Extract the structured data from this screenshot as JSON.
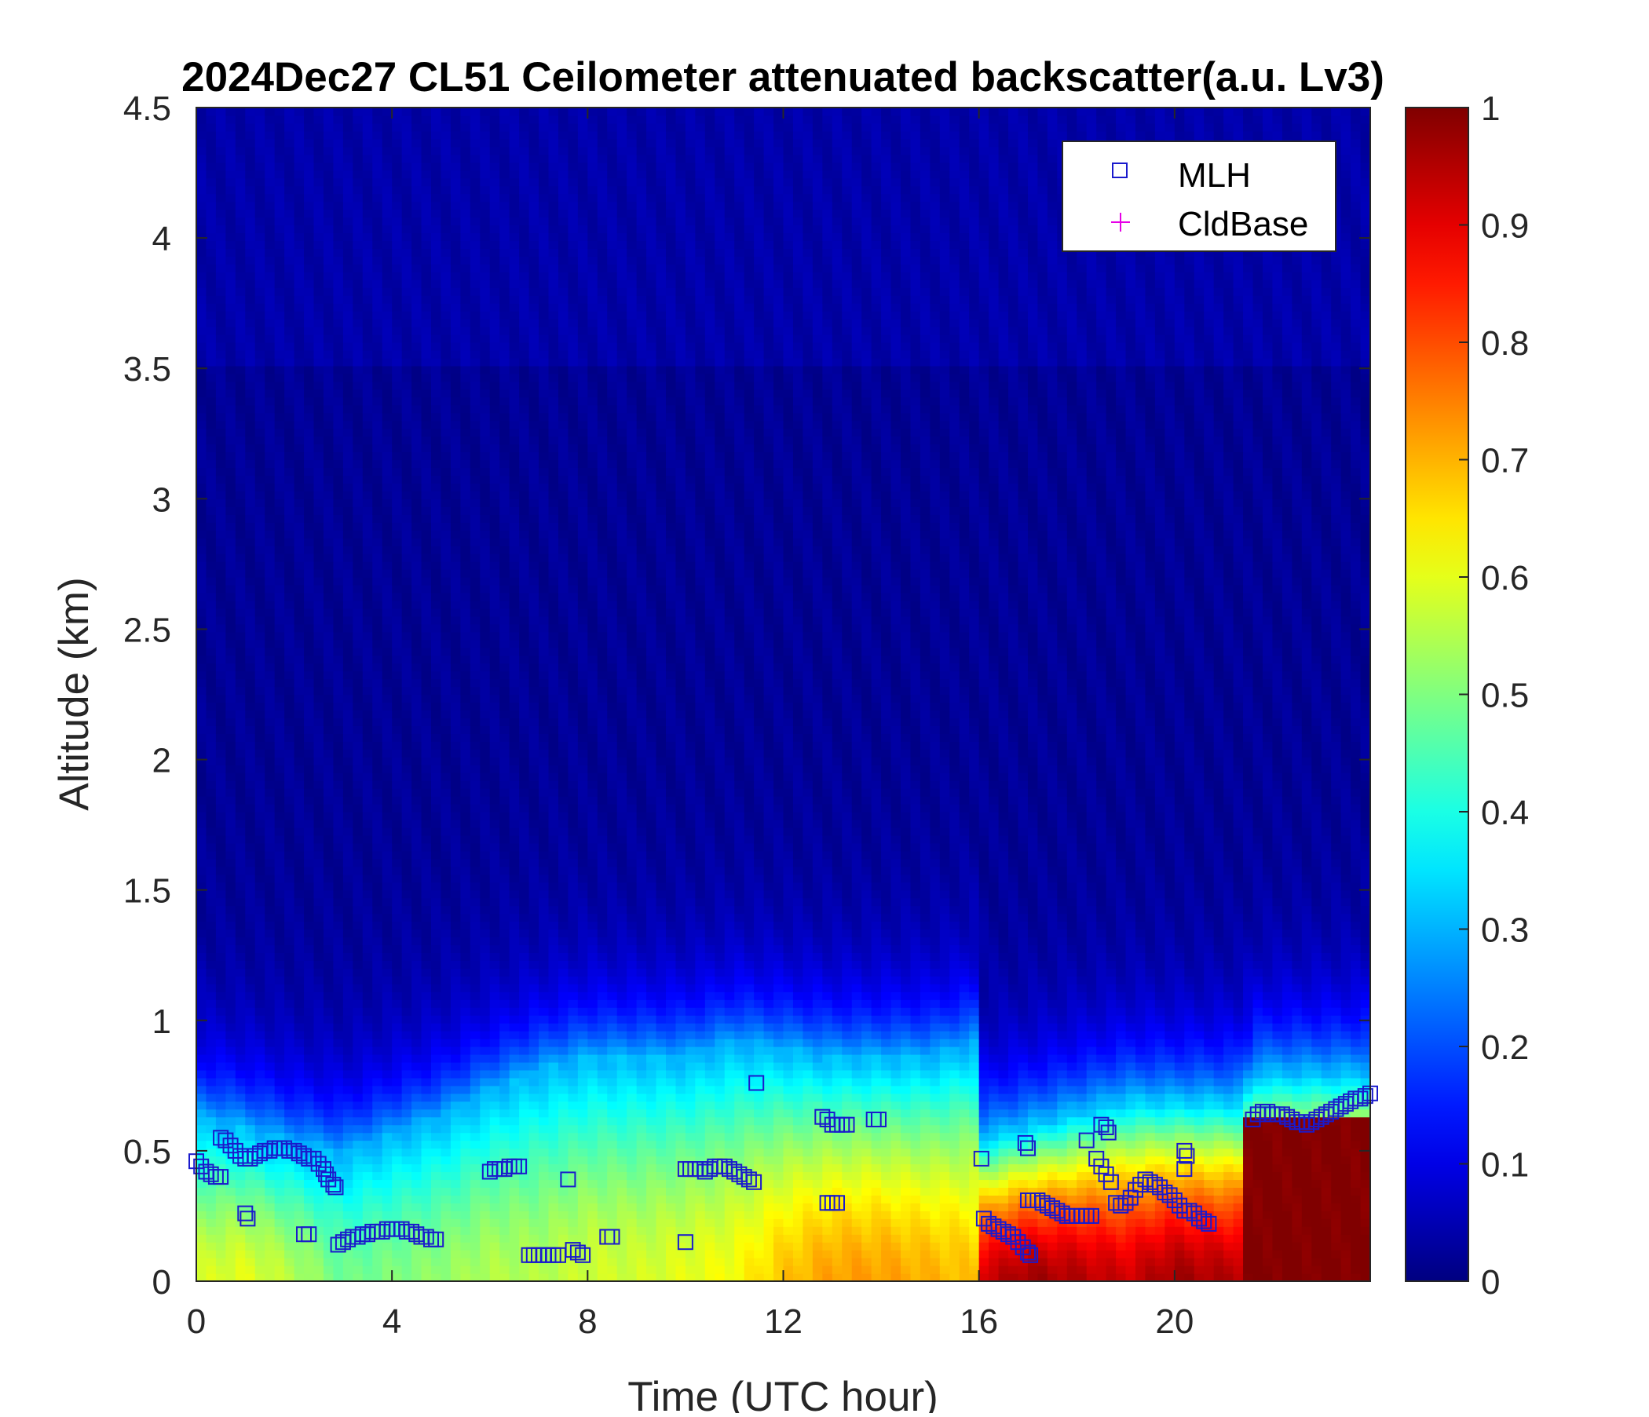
{
  "chart_data": {
    "type": "heatmap",
    "title": "2024Dec27 CL51 Ceilometer attenuated backscatter(a.u. Lv3)",
    "xlabel": "Time (UTC hour)",
    "ylabel": "Altitude (km)",
    "xlim": [
      0,
      24
    ],
    "ylim": [
      0,
      4.5
    ],
    "xticks": [
      0,
      4,
      8,
      12,
      16,
      20
    ],
    "xtick_labels": [
      "0",
      "4",
      "8",
      "12",
      "16",
      "20"
    ],
    "yticks": [
      0,
      0.5,
      1,
      1.5,
      2,
      2.5,
      3,
      3.5,
      4,
      4.5
    ],
    "ytick_labels": [
      "0",
      "0.5",
      "1",
      "1.5",
      "2",
      "2.5",
      "3",
      "3.5",
      "4",
      "4.5"
    ],
    "colorbar": {
      "colormap": "jet",
      "range": [
        0,
        1
      ],
      "ticks": [
        0,
        0.1,
        0.2,
        0.3,
        0.4,
        0.5,
        0.6,
        0.7,
        0.8,
        0.9,
        1
      ],
      "tick_labels": [
        "0",
        "0.1",
        "0.2",
        "0.3",
        "0.4",
        "0.5",
        "0.6",
        "0.7",
        "0.8",
        "0.9",
        "1"
      ]
    },
    "legend": {
      "position": "top-right",
      "entries": [
        {
          "label": "MLH",
          "marker": "square",
          "color": "#1a1acc"
        },
        {
          "label": "CldBase",
          "marker": "plus",
          "color": "#e600e6"
        }
      ]
    },
    "grid": false,
    "background_profile": {
      "description_free": true,
      "time_nodes": [
        0,
        1,
        2,
        3,
        4,
        5,
        6,
        7,
        8,
        9,
        10,
        11,
        12,
        13,
        14,
        15,
        15.99,
        16.01,
        17,
        18,
        19,
        20,
        21,
        21.49,
        21.51,
        22,
        23,
        24
      ],
      "mixed_layer_top_km": [
        0.62,
        0.58,
        0.52,
        0.48,
        0.55,
        0.62,
        0.72,
        0.8,
        0.85,
        0.85,
        0.85,
        0.9,
        0.88,
        0.85,
        0.85,
        0.85,
        0.9,
        0.55,
        0.6,
        0.65,
        0.7,
        0.7,
        0.7,
        0.7,
        0.8,
        0.8,
        0.8,
        0.8
      ],
      "near_surface_value": [
        0.58,
        0.6,
        0.55,
        0.48,
        0.5,
        0.52,
        0.55,
        0.55,
        0.58,
        0.58,
        0.6,
        0.62,
        0.68,
        0.72,
        0.72,
        0.7,
        0.68,
        0.92,
        0.97,
        0.95,
        0.92,
        0.97,
        0.95,
        0.95,
        1.0,
        1.0,
        1.0,
        1.0
      ],
      "saturated_block": {
        "x": [
          21.5,
          24
        ],
        "y": [
          0,
          0.62
        ],
        "value": 1.0
      }
    },
    "mlh_series": {
      "name": "MLH",
      "points": [
        [
          0.0,
          0.46
        ],
        [
          0.1,
          0.44
        ],
        [
          0.2,
          0.42
        ],
        [
          0.3,
          0.41
        ],
        [
          0.4,
          0.4
        ],
        [
          0.5,
          0.4
        ],
        [
          0.5,
          0.55
        ],
        [
          0.6,
          0.54
        ],
        [
          0.7,
          0.52
        ],
        [
          0.8,
          0.5
        ],
        [
          0.9,
          0.48
        ],
        [
          1.0,
          0.47
        ],
        [
          1.1,
          0.47
        ],
        [
          1.2,
          0.48
        ],
        [
          1.3,
          0.49
        ],
        [
          1.4,
          0.5
        ],
        [
          1.5,
          0.5
        ],
        [
          1.6,
          0.51
        ],
        [
          1.7,
          0.51
        ],
        [
          1.8,
          0.51
        ],
        [
          1.9,
          0.5
        ],
        [
          2.0,
          0.5
        ],
        [
          2.1,
          0.49
        ],
        [
          2.2,
          0.48
        ],
        [
          2.3,
          0.47
        ],
        [
          2.4,
          0.47
        ],
        [
          2.5,
          0.45
        ],
        [
          2.6,
          0.43
        ],
        [
          2.65,
          0.41
        ],
        [
          2.7,
          0.39
        ],
        [
          2.8,
          0.37
        ],
        [
          2.85,
          0.36
        ],
        [
          1.0,
          0.26
        ],
        [
          1.05,
          0.24
        ],
        [
          2.2,
          0.18
        ],
        [
          2.3,
          0.18
        ],
        [
          2.9,
          0.14
        ],
        [
          3.0,
          0.15
        ],
        [
          3.1,
          0.16
        ],
        [
          3.2,
          0.17
        ],
        [
          3.3,
          0.17
        ],
        [
          3.4,
          0.18
        ],
        [
          3.5,
          0.18
        ],
        [
          3.6,
          0.19
        ],
        [
          3.7,
          0.19
        ],
        [
          3.8,
          0.19
        ],
        [
          3.9,
          0.2
        ],
        [
          4.0,
          0.2
        ],
        [
          4.1,
          0.2
        ],
        [
          4.2,
          0.2
        ],
        [
          4.3,
          0.19
        ],
        [
          4.4,
          0.19
        ],
        [
          4.5,
          0.18
        ],
        [
          4.6,
          0.17
        ],
        [
          4.7,
          0.17
        ],
        [
          4.8,
          0.16
        ],
        [
          4.9,
          0.16
        ],
        [
          6.0,
          0.42
        ],
        [
          6.1,
          0.43
        ],
        [
          6.2,
          0.43
        ],
        [
          6.3,
          0.43
        ],
        [
          6.4,
          0.44
        ],
        [
          6.5,
          0.44
        ],
        [
          6.6,
          0.44
        ],
        [
          6.8,
          0.1
        ],
        [
          6.9,
          0.1
        ],
        [
          7.0,
          0.1
        ],
        [
          7.1,
          0.1
        ],
        [
          7.2,
          0.1
        ],
        [
          7.3,
          0.1
        ],
        [
          7.4,
          0.1
        ],
        [
          7.6,
          0.39
        ],
        [
          7.7,
          0.12
        ],
        [
          7.8,
          0.11
        ],
        [
          7.9,
          0.1
        ],
        [
          8.4,
          0.17
        ],
        [
          8.5,
          0.17
        ],
        [
          10.0,
          0.15
        ],
        [
          10.0,
          0.43
        ],
        [
          10.1,
          0.43
        ],
        [
          10.2,
          0.43
        ],
        [
          10.3,
          0.43
        ],
        [
          10.4,
          0.42
        ],
        [
          10.5,
          0.43
        ],
        [
          10.6,
          0.44
        ],
        [
          10.7,
          0.44
        ],
        [
          10.8,
          0.44
        ],
        [
          10.9,
          0.43
        ],
        [
          11.0,
          0.42
        ],
        [
          11.1,
          0.41
        ],
        [
          11.2,
          0.4
        ],
        [
          11.3,
          0.39
        ],
        [
          11.4,
          0.38
        ],
        [
          11.45,
          0.76
        ],
        [
          12.8,
          0.63
        ],
        [
          12.9,
          0.62
        ],
        [
          13.0,
          0.6
        ],
        [
          13.1,
          0.6
        ],
        [
          13.2,
          0.6
        ],
        [
          13.3,
          0.6
        ],
        [
          13.85,
          0.62
        ],
        [
          13.95,
          0.62
        ],
        [
          12.9,
          0.3
        ],
        [
          13.0,
          0.3
        ],
        [
          13.1,
          0.3
        ],
        [
          16.05,
          0.47
        ],
        [
          16.1,
          0.24
        ],
        [
          16.2,
          0.22
        ],
        [
          16.3,
          0.21
        ],
        [
          16.4,
          0.2
        ],
        [
          16.5,
          0.19
        ],
        [
          16.6,
          0.18
        ],
        [
          16.7,
          0.17
        ],
        [
          16.8,
          0.15
        ],
        [
          16.9,
          0.13
        ],
        [
          17.0,
          0.11
        ],
        [
          17.05,
          0.1
        ],
        [
          16.95,
          0.53
        ],
        [
          17.0,
          0.51
        ],
        [
          17.0,
          0.31
        ],
        [
          17.1,
          0.31
        ],
        [
          17.2,
          0.31
        ],
        [
          17.3,
          0.3
        ],
        [
          17.4,
          0.29
        ],
        [
          17.5,
          0.28
        ],
        [
          17.6,
          0.27
        ],
        [
          17.7,
          0.26
        ],
        [
          17.8,
          0.25
        ],
        [
          17.9,
          0.25
        ],
        [
          18.0,
          0.25
        ],
        [
          18.1,
          0.25
        ],
        [
          18.2,
          0.25
        ],
        [
          18.3,
          0.25
        ],
        [
          18.2,
          0.54
        ],
        [
          18.5,
          0.6
        ],
        [
          18.6,
          0.59
        ],
        [
          18.65,
          0.57
        ],
        [
          18.4,
          0.47
        ],
        [
          18.5,
          0.44
        ],
        [
          18.6,
          0.41
        ],
        [
          18.7,
          0.38
        ],
        [
          18.8,
          0.3
        ],
        [
          18.9,
          0.29
        ],
        [
          19.0,
          0.3
        ],
        [
          19.1,
          0.32
        ],
        [
          19.2,
          0.35
        ],
        [
          19.3,
          0.37
        ],
        [
          19.4,
          0.39
        ],
        [
          19.5,
          0.38
        ],
        [
          19.6,
          0.37
        ],
        [
          19.7,
          0.36
        ],
        [
          19.8,
          0.34
        ],
        [
          19.9,
          0.33
        ],
        [
          20.0,
          0.31
        ],
        [
          20.1,
          0.29
        ],
        [
          20.2,
          0.27
        ],
        [
          20.2,
          0.5
        ],
        [
          20.25,
          0.48
        ],
        [
          20.2,
          0.43
        ],
        [
          20.3,
          0.27
        ],
        [
          20.4,
          0.26
        ],
        [
          20.5,
          0.24
        ],
        [
          20.6,
          0.23
        ],
        [
          20.7,
          0.22
        ],
        [
          21.6,
          0.62
        ],
        [
          21.7,
          0.64
        ],
        [
          21.8,
          0.65
        ],
        [
          21.9,
          0.65
        ],
        [
          22.0,
          0.64
        ],
        [
          22.1,
          0.64
        ],
        [
          22.2,
          0.64
        ],
        [
          22.3,
          0.63
        ],
        [
          22.4,
          0.62
        ],
        [
          22.5,
          0.61
        ],
        [
          22.6,
          0.61
        ],
        [
          22.7,
          0.6
        ],
        [
          22.8,
          0.61
        ],
        [
          22.9,
          0.62
        ],
        [
          23.0,
          0.63
        ],
        [
          23.1,
          0.64
        ],
        [
          23.2,
          0.65
        ],
        [
          23.3,
          0.66
        ],
        [
          23.4,
          0.67
        ],
        [
          23.5,
          0.68
        ],
        [
          23.6,
          0.69
        ],
        [
          23.7,
          0.7
        ],
        [
          23.8,
          0.7
        ],
        [
          23.9,
          0.71
        ],
        [
          24.0,
          0.72
        ]
      ]
    },
    "cldbase_series": {
      "name": "CldBase",
      "points": []
    }
  }
}
